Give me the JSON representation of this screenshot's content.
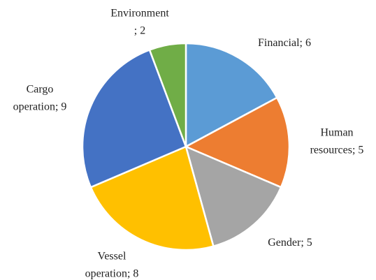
{
  "chart_data": {
    "type": "pie",
    "values": [
      6,
      5,
      5,
      8,
      9,
      2
    ],
    "value_labels": [
      "Financial; 6",
      "Human\nresources; 5",
      "Gender; 5",
      "Vessel\noperation; 8",
      "Cargo\noperation; 9",
      "Environment\n; 2"
    ],
    "colors": [
      "#5b9bd5",
      "#ed7d31",
      "#a5a5a5",
      "#ffc000",
      "#4472c4",
      "#70ad47"
    ]
  }
}
